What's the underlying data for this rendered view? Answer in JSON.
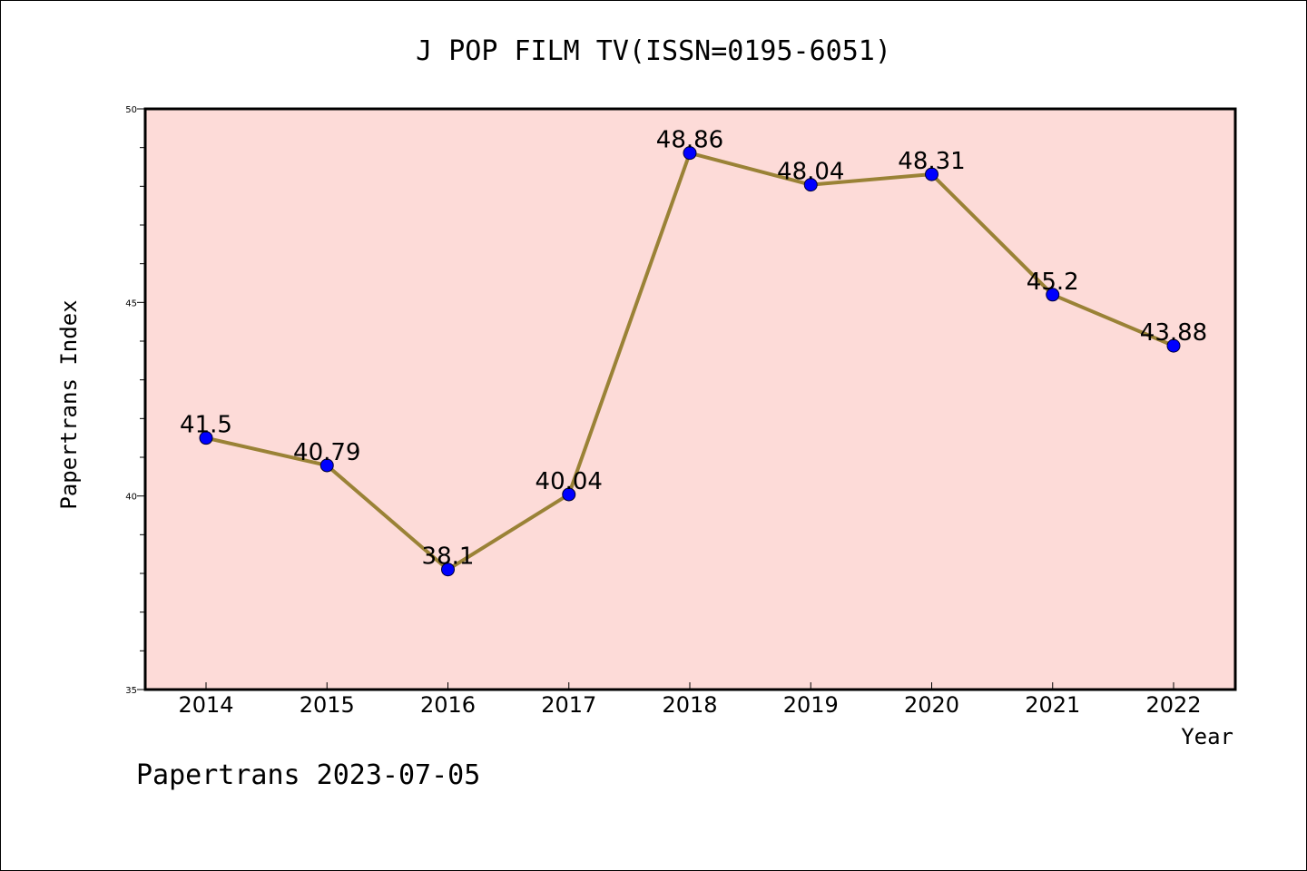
{
  "chart_data": {
    "type": "line",
    "title": "J POP FILM TV(ISSN=0195-6051)",
    "xlabel": "Year",
    "ylabel": "Papertrans Index",
    "footer": "Papertrans 2023-07-05",
    "x": [
      "2014",
      "2015",
      "2016",
      "2017",
      "2018",
      "2019",
      "2020",
      "2021",
      "2022"
    ],
    "series": [
      {
        "values": [
          41.5,
          40.79,
          38.1,
          40.04,
          48.86,
          48.04,
          48.31,
          45.2,
          43.88
        ],
        "labels": [
          "41.5",
          "40.79",
          "38.1",
          "40.04",
          "48.86",
          "48.04",
          "48.31",
          "45.2",
          "43.88"
        ]
      }
    ],
    "ylim": [
      35,
      50
    ],
    "yticks": [
      "35",
      "40",
      "45",
      "50"
    ],
    "grid": false,
    "colors": {
      "plot_background": "#fddbd8",
      "line": "#9a8236",
      "marker": "#0000ff"
    }
  }
}
